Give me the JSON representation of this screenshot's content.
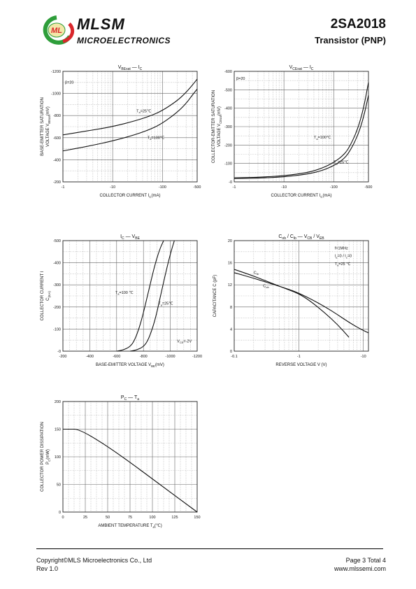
{
  "header": {
    "brand": "MLSM",
    "subtitle": "MICROELECTRONICS",
    "part_number": "2SA2018",
    "part_desc": "Transistor  (PNP)",
    "logo_text": "ML",
    "colors": {
      "green": "#2e9e3a",
      "red": "#d9262b",
      "text": "#111111"
    }
  },
  "footer": {
    "copyright": "Copyright©MLS Microelectronics Co., Ltd",
    "rev": "Rev 1.0",
    "page": "Page 3 Total 4",
    "url": "www.mlssemi.com"
  },
  "chart_data": [
    {
      "id": "vbe-sat",
      "type": "line",
      "title": [
        "V",
        "BEsat",
        " — I",
        "C",
        ""
      ],
      "ylabel": [
        "BASE-EMITTER SATURATION",
        "VOLTAGE  V",
        "BEsat",
        "(mV)"
      ],
      "xlabel": [
        "COLLECTOR CURRENT   I",
        "C",
        "(mA)"
      ],
      "x_scale": "log",
      "xlim": [
        -1,
        -500
      ],
      "ylim": [
        -200,
        -1200
      ],
      "x_ticks": [
        {
          "v": -1,
          "label": "-1"
        },
        {
          "v": -10,
          "label": "-10"
        },
        {
          "v": -100,
          "label": "-100"
        },
        {
          "v": -500,
          "label": "-500"
        }
      ],
      "y_ticks": [
        {
          "v": -200,
          "label": "-200"
        },
        {
          "v": -400,
          "label": "-400"
        },
        {
          "v": -600,
          "label": "-600"
        },
        {
          "v": -800,
          "label": "-800"
        },
        {
          "v": -1000,
          "label": "-1000"
        },
        {
          "v": -1200,
          "label": "-1200"
        }
      ],
      "annotations": [
        {
          "text": "β=20",
          "x": -1.1,
          "y": -1090
        }
      ],
      "series": [
        {
          "label": [
            "T",
            "a",
            "=25℃"
          ],
          "label_at": [
            -30,
            -830
          ],
          "x": [
            -1,
            -3,
            -10,
            -30,
            -60,
            -100,
            -200,
            -300,
            -400,
            -500
          ],
          "y": [
            -625,
            -660,
            -700,
            -755,
            -800,
            -845,
            -935,
            -1010,
            -1075,
            -1130
          ]
        },
        {
          "label": [
            "T",
            "a",
            "=100℃"
          ],
          "label_at": [
            -50,
            -590
          ],
          "x": [
            -1,
            -3,
            -10,
            -30,
            -60,
            -100,
            -200,
            -300,
            -400,
            -500
          ],
          "y": [
            -480,
            -520,
            -570,
            -630,
            -680,
            -730,
            -830,
            -910,
            -985,
            -1040
          ]
        }
      ]
    },
    {
      "id": "vce-sat",
      "type": "line",
      "title": [
        "V",
        "CEsat",
        " — I",
        "C",
        ""
      ],
      "ylabel": [
        "COLLECTOR-EMITTER SATURATION",
        "VOLTAGE  V",
        "CEsat",
        "(mV)"
      ],
      "xlabel": [
        "COLLECTOR CURRENT   I",
        "C",
        "(mA)"
      ],
      "x_scale": "log",
      "xlim": [
        -1,
        -500
      ],
      "ylim": [
        0,
        -600
      ],
      "x_ticks": [
        {
          "v": -1,
          "label": "-1"
        },
        {
          "v": -10,
          "label": "-10"
        },
        {
          "v": -100,
          "label": "-100"
        },
        {
          "v": -500,
          "label": "-500"
        }
      ],
      "y_ticks": [
        {
          "v": 0,
          "label": "-0"
        },
        {
          "v": -100,
          "label": "-100"
        },
        {
          "v": -200,
          "label": "-200"
        },
        {
          "v": -300,
          "label": "-300"
        },
        {
          "v": -400,
          "label": "-400"
        },
        {
          "v": -500,
          "label": "-500"
        },
        {
          "v": -600,
          "label": "-600"
        }
      ],
      "annotations": [
        {
          "text": "β=20",
          "x": -1.1,
          "y": -555
        }
      ],
      "series": [
        {
          "label": [
            "T",
            "a",
            "=100℃"
          ],
          "label_at": [
            -40,
            -235
          ],
          "x": [
            -1,
            -3,
            -10,
            -30,
            -60,
            -100,
            -150,
            -200,
            -300,
            -400,
            -500
          ],
          "y": [
            -22,
            -25,
            -33,
            -50,
            -75,
            -105,
            -140,
            -180,
            -280,
            -400,
            -540
          ]
        },
        {
          "label": [
            "T",
            "a",
            "=25℃"
          ],
          "label_at": [
            -100,
            -100
          ],
          "x": [
            -1,
            -3,
            -10,
            -30,
            -60,
            -100,
            -150,
            -200,
            -300,
            -400,
            -500
          ],
          "y": [
            -18,
            -20,
            -27,
            -42,
            -62,
            -88,
            -118,
            -155,
            -245,
            -350,
            -470
          ]
        }
      ]
    },
    {
      "id": "ic-vbe",
      "type": "line",
      "title": [
        "I",
        "C",
        " — V",
        "BE",
        ""
      ],
      "ylabel": [
        "COLLECTOR CURRENT   I",
        "C",
        "(mA)"
      ],
      "xlabel": [
        "BASE-EMITTER VOLTAGE   V",
        "BE",
        "(mV)"
      ],
      "x_scale": "linear",
      "xlim": [
        -200,
        -1200
      ],
      "ylim": [
        0,
        -500
      ],
      "x_ticks": [
        {
          "v": -200,
          "label": "-200"
        },
        {
          "v": -400,
          "label": "-400"
        },
        {
          "v": -600,
          "label": "-600"
        },
        {
          "v": -800,
          "label": "-800"
        },
        {
          "v": -1000,
          "label": "-1000"
        },
        {
          "v": -1200,
          "label": "-1200"
        }
      ],
      "y_ticks": [
        {
          "v": 0,
          "label": "-0"
        },
        {
          "v": -100,
          "label": "-100"
        },
        {
          "v": -200,
          "label": "-200"
        },
        {
          "v": -300,
          "label": "-300"
        },
        {
          "v": -400,
          "label": "-400"
        },
        {
          "v": -500,
          "label": "-500"
        }
      ],
      "annotations": [
        {
          "text": [
            "V",
            "CE",
            "=-2V"
          ],
          "x": -1050,
          "y": -40
        }
      ],
      "series": [
        {
          "label": [
            "T",
            "a",
            "=100 ℃"
          ],
          "label_at": [
            -590,
            -260
          ],
          "x": [
            -600,
            -650,
            -700,
            -730,
            -760,
            -790,
            -830,
            -880,
            -920,
            -950
          ],
          "y": [
            0,
            -5,
            -20,
            -45,
            -90,
            -150,
            -250,
            -380,
            -460,
            -500
          ]
        },
        {
          "label": [
            "T",
            "a",
            "=25℃"
          ],
          "label_at": [
            -910,
            -210
          ],
          "x": [
            -700,
            -750,
            -800,
            -830,
            -860,
            -890,
            -920,
            -960,
            -1000,
            -1030
          ],
          "y": [
            0,
            -5,
            -20,
            -45,
            -90,
            -150,
            -230,
            -340,
            -440,
            -500
          ]
        }
      ]
    },
    {
      "id": "cap-vr",
      "type": "line",
      "title": [
        "C",
        "ob",
        " / C",
        "ib",
        " — V",
        "CB",
        " / V",
        "EB",
        ""
      ],
      "ylabel": [
        "CAPACITANCE   C   (pF)"
      ],
      "xlabel": [
        "REVERSE VOLTAGE   V   (V)"
      ],
      "x_scale": "log",
      "xlim": [
        -0.1,
        -12
      ],
      "ylim": [
        0,
        20
      ],
      "x_ticks": [
        {
          "v": -0.1,
          "label": "-0.1"
        },
        {
          "v": -1,
          "label": "-1"
        },
        {
          "v": -10,
          "label": "-10"
        }
      ],
      "y_ticks": [
        {
          "v": 0,
          "label": "0"
        },
        {
          "v": 4,
          "label": "4"
        },
        {
          "v": 8,
          "label": "8"
        },
        {
          "v": 12,
          "label": "12"
        },
        {
          "v": 16,
          "label": "16"
        },
        {
          "v": 20,
          "label": "20"
        }
      ],
      "annotations": [
        {
          "text": "f=1MHz",
          "x": -3.6,
          "y": 18.4
        },
        {
          "text": [
            "I",
            "e",
            "=0 / I",
            "c",
            "=0"
          ],
          "x": -3.6,
          "y": 17.0
        },
        {
          "text": [
            "T",
            "a",
            "=25 ℃"
          ],
          "x": -3.6,
          "y": 15.6
        }
      ],
      "series": [
        {
          "label": [
            "C",
            "ib",
            ""
          ],
          "label_at": [
            -0.2,
            14.0
          ],
          "x": [
            -0.1,
            -0.2,
            -0.4,
            -0.7,
            -1,
            -1.5,
            -2.5,
            -4,
            -6
          ],
          "y": [
            14.8,
            13.6,
            12.2,
            11.1,
            10.4,
            9.1,
            7.0,
            4.8,
            2.5
          ]
        },
        {
          "label": [
            "C",
            "ob",
            ""
          ],
          "label_at": [
            -0.28,
            11.6
          ],
          "x": [
            -0.1,
            -0.2,
            -0.4,
            -0.7,
            -1,
            -1.5,
            -2.5,
            -4,
            -6,
            -9,
            -12
          ],
          "y": [
            14.2,
            13.2,
            12.1,
            11.2,
            10.5,
            9.5,
            8.1,
            6.6,
            5.2,
            4.0,
            3.3
          ]
        }
      ]
    },
    {
      "id": "pc-ta",
      "type": "line",
      "title": [
        "P",
        "C",
        " — T",
        "a",
        ""
      ],
      "ylabel": [
        "COLLECTOR POWER DISSIPATION",
        "P",
        "C",
        "(mW)"
      ],
      "xlabel": [
        "AMBIENT TEMPERATURE   T",
        "a",
        "(℃)"
      ],
      "x_scale": "linear",
      "xlim": [
        0,
        150
      ],
      "ylim": [
        0,
        200
      ],
      "x_ticks": [
        {
          "v": 0,
          "label": "0"
        },
        {
          "v": 25,
          "label": "25"
        },
        {
          "v": 50,
          "label": "50"
        },
        {
          "v": 75,
          "label": "75"
        },
        {
          "v": 100,
          "label": "100"
        },
        {
          "v": 125,
          "label": "125"
        },
        {
          "v": 150,
          "label": "150"
        }
      ],
      "y_ticks": [
        {
          "v": 0,
          "label": "0"
        },
        {
          "v": 50,
          "label": "50"
        },
        {
          "v": 100,
          "label": "100"
        },
        {
          "v": 150,
          "label": "150"
        },
        {
          "v": 200,
          "label": "200"
        }
      ],
      "annotations": [],
      "series": [
        {
          "label": null,
          "label_at": null,
          "x": [
            0,
            25,
            150
          ],
          "y": [
            150,
            150,
            0
          ]
        }
      ]
    }
  ]
}
